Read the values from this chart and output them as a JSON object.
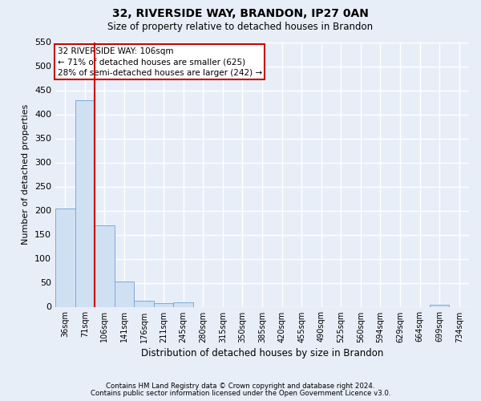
{
  "title1": "32, RIVERSIDE WAY, BRANDON, IP27 0AN",
  "title2": "Size of property relative to detached houses in Brandon",
  "xlabel": "Distribution of detached houses by size in Brandon",
  "ylabel": "Number of detached properties",
  "footnote1": "Contains HM Land Registry data © Crown copyright and database right 2024.",
  "footnote2": "Contains public sector information licensed under the Open Government Licence v3.0.",
  "annotation_line1": "32 RIVERSIDE WAY: 106sqm",
  "annotation_line2": "← 71% of detached houses are smaller (625)",
  "annotation_line3": "28% of semi-detached houses are larger (242) →",
  "bin_labels": [
    "36sqm",
    "71sqm",
    "106sqm",
    "141sqm",
    "176sqm",
    "211sqm",
    "245sqm",
    "280sqm",
    "315sqm",
    "350sqm",
    "385sqm",
    "420sqm",
    "455sqm",
    "490sqm",
    "525sqm",
    "560sqm",
    "594sqm",
    "629sqm",
    "664sqm",
    "699sqm",
    "734sqm"
  ],
  "bar_heights": [
    205,
    430,
    170,
    53,
    13,
    8,
    9,
    0,
    0,
    0,
    0,
    0,
    0,
    0,
    0,
    0,
    0,
    0,
    0,
    5,
    0
  ],
  "bar_color": "#cfe0f3",
  "bar_edge_color": "#7aabda",
  "red_line_index": 2,
  "ylim": [
    0,
    550
  ],
  "yticks": [
    0,
    50,
    100,
    150,
    200,
    250,
    300,
    350,
    400,
    450,
    500,
    550
  ],
  "bg_color": "#e8eef8",
  "grid_color": "#ffffff",
  "annotation_box_color": "#ffffff",
  "annotation_box_edge": "#cc0000",
  "red_line_color": "#cc0000",
  "title1_fontsize": 10,
  "title2_fontsize": 8.5,
  "ylabel_fontsize": 8,
  "xlabel_fontsize": 8.5,
  "annotation_fontsize": 7.5,
  "footnote_fontsize": 6.2,
  "ytick_fontsize": 8,
  "xtick_fontsize": 7
}
